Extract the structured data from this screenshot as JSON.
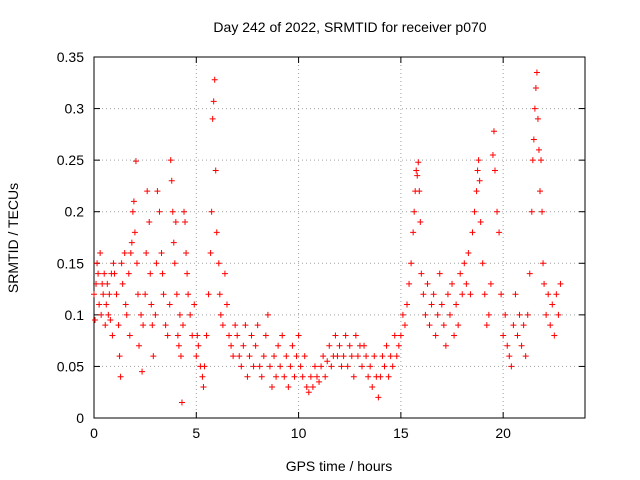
{
  "chart_data": {
    "type": "scatter",
    "title": "Day 242 of 2022, SRMTID for receiver p070",
    "xlabel": "GPS time / hours",
    "ylabel": "SRMTID / TECUs",
    "xlim": [
      0,
      24
    ],
    "ylim": [
      0,
      0.35
    ],
    "xticks": [
      0,
      5,
      10,
      15,
      20
    ],
    "xtick_labels": [
      "0",
      "5",
      "10",
      "15",
      "20"
    ],
    "yticks": [
      0,
      0.05,
      0.1,
      0.15,
      0.2,
      0.25,
      0.3,
      0.35
    ],
    "ytick_labels": [
      "0",
      "0.05",
      "0.1",
      "0.15",
      "0.2",
      "0.25",
      "0.3",
      "0.35"
    ],
    "grid": true,
    "marker": "+",
    "marker_color": "#ff0000",
    "series": [
      {
        "name": "SRMTID",
        "points": [
          [
            0.0,
            0.12
          ],
          [
            0.05,
            0.095
          ],
          [
            0.1,
            0.13
          ],
          [
            0.15,
            0.15
          ],
          [
            0.2,
            0.14
          ],
          [
            0.25,
            0.11
          ],
          [
            0.3,
            0.16
          ],
          [
            0.35,
            0.1
          ],
          [
            0.4,
            0.13
          ],
          [
            0.45,
            0.12
          ],
          [
            0.5,
            0.14
          ],
          [
            0.55,
            0.09
          ],
          [
            0.6,
            0.11
          ],
          [
            0.65,
            0.13
          ],
          [
            0.7,
            0.1
          ],
          [
            0.75,
            0.12
          ],
          [
            0.8,
            0.095
          ],
          [
            0.85,
            0.14
          ],
          [
            0.9,
            0.08
          ],
          [
            0.95,
            0.15
          ],
          [
            1.0,
            0.14
          ],
          [
            1.1,
            0.12
          ],
          [
            1.2,
            0.09
          ],
          [
            1.25,
            0.06
          ],
          [
            1.3,
            0.04
          ],
          [
            1.35,
            0.15
          ],
          [
            1.4,
            0.13
          ],
          [
            1.5,
            0.16
          ],
          [
            1.55,
            0.11
          ],
          [
            1.6,
            0.1
          ],
          [
            1.7,
            0.14
          ],
          [
            1.75,
            0.08
          ],
          [
            1.8,
            0.16
          ],
          [
            1.85,
            0.17
          ],
          [
            1.9,
            0.2
          ],
          [
            1.95,
            0.21
          ],
          [
            2.0,
            0.18
          ],
          [
            2.05,
            0.249
          ],
          [
            2.1,
            0.15
          ],
          [
            2.15,
            0.12
          ],
          [
            2.2,
            0.07
          ],
          [
            2.3,
            0.1
          ],
          [
            2.35,
            0.045
          ],
          [
            2.4,
            0.09
          ],
          [
            2.5,
            0.12
          ],
          [
            2.55,
            0.16
          ],
          [
            2.6,
            0.22
          ],
          [
            2.7,
            0.19
          ],
          [
            2.75,
            0.14
          ],
          [
            2.8,
            0.11
          ],
          [
            2.85,
            0.09
          ],
          [
            2.9,
            0.06
          ],
          [
            3.0,
            0.1
          ],
          [
            3.05,
            0.15
          ],
          [
            3.1,
            0.22
          ],
          [
            3.2,
            0.2
          ],
          [
            3.3,
            0.16
          ],
          [
            3.35,
            0.14
          ],
          [
            3.4,
            0.12
          ],
          [
            3.5,
            0.09
          ],
          [
            3.6,
            0.08
          ],
          [
            3.7,
            0.11
          ],
          [
            3.75,
            0.25
          ],
          [
            3.8,
            0.23
          ],
          [
            3.85,
            0.2
          ],
          [
            3.9,
            0.17
          ],
          [
            3.95,
            0.15
          ],
          [
            4.0,
            0.19
          ],
          [
            4.05,
            0.12
          ],
          [
            4.1,
            0.08
          ],
          [
            4.15,
            0.07
          ],
          [
            4.2,
            0.1
          ],
          [
            4.25,
            0.06
          ],
          [
            4.3,
            0.015
          ],
          [
            4.35,
            0.09
          ],
          [
            4.4,
            0.2
          ],
          [
            4.45,
            0.19
          ],
          [
            4.5,
            0.16
          ],
          [
            4.55,
            0.14
          ],
          [
            4.6,
            0.12
          ],
          [
            4.7,
            0.1
          ],
          [
            4.8,
            0.08
          ],
          [
            4.9,
            0.11
          ],
          [
            5.0,
            0.06
          ],
          [
            5.05,
            0.08
          ],
          [
            5.1,
            0.07
          ],
          [
            5.2,
            0.05
          ],
          [
            5.3,
            0.04
          ],
          [
            5.35,
            0.03
          ],
          [
            5.4,
            0.05
          ],
          [
            5.5,
            0.08
          ],
          [
            5.6,
            0.12
          ],
          [
            5.7,
            0.16
          ],
          [
            5.75,
            0.2
          ],
          [
            5.8,
            0.29
          ],
          [
            5.85,
            0.307
          ],
          [
            5.9,
            0.328
          ],
          [
            5.95,
            0.24
          ],
          [
            6.0,
            0.18
          ],
          [
            6.1,
            0.15
          ],
          [
            6.15,
            0.12
          ],
          [
            6.2,
            0.1
          ],
          [
            6.3,
            0.09
          ],
          [
            6.4,
            0.14
          ],
          [
            6.5,
            0.11
          ],
          [
            6.6,
            0.08
          ],
          [
            6.7,
            0.07
          ],
          [
            6.8,
            0.06
          ],
          [
            6.9,
            0.09
          ],
          [
            7.0,
            0.08
          ],
          [
            7.1,
            0.06
          ],
          [
            7.2,
            0.05
          ],
          [
            7.3,
            0.07
          ],
          [
            7.4,
            0.09
          ],
          [
            7.5,
            0.04
          ],
          [
            7.6,
            0.06
          ],
          [
            7.7,
            0.08
          ],
          [
            7.8,
            0.05
          ],
          [
            7.9,
            0.07
          ],
          [
            8.0,
            0.09
          ],
          [
            8.1,
            0.05
          ],
          [
            8.2,
            0.04
          ],
          [
            8.3,
            0.06
          ],
          [
            8.4,
            0.08
          ],
          [
            8.5,
            0.1
          ],
          [
            8.6,
            0.05
          ],
          [
            8.7,
            0.03
          ],
          [
            8.8,
            0.06
          ],
          [
            8.9,
            0.04
          ],
          [
            9.0,
            0.07
          ],
          [
            9.1,
            0.05
          ],
          [
            9.2,
            0.08
          ],
          [
            9.3,
            0.04
          ],
          [
            9.4,
            0.06
          ],
          [
            9.5,
            0.03
          ],
          [
            9.6,
            0.05
          ],
          [
            9.7,
            0.07
          ],
          [
            9.8,
            0.04
          ],
          [
            9.9,
            0.06
          ],
          [
            10.0,
            0.08
          ],
          [
            10.1,
            0.05
          ],
          [
            10.2,
            0.04
          ],
          [
            10.3,
            0.06
          ],
          [
            10.4,
            0.03
          ],
          [
            10.5,
            0.025
          ],
          [
            10.6,
            0.04
          ],
          [
            10.7,
            0.03
          ],
          [
            10.8,
            0.05
          ],
          [
            10.9,
            0.04
          ],
          [
            11.0,
            0.035
          ],
          [
            11.1,
            0.05
          ],
          [
            11.2,
            0.06
          ],
          [
            11.3,
            0.04
          ],
          [
            11.4,
            0.055
          ],
          [
            11.5,
            0.07
          ],
          [
            11.6,
            0.05
          ],
          [
            11.7,
            0.06
          ],
          [
            11.8,
            0.08
          ],
          [
            11.9,
            0.06
          ],
          [
            12.0,
            0.07
          ],
          [
            12.1,
            0.05
          ],
          [
            12.2,
            0.06
          ],
          [
            12.3,
            0.08
          ],
          [
            12.4,
            0.05
          ],
          [
            12.5,
            0.07
          ],
          [
            12.6,
            0.06
          ],
          [
            12.7,
            0.04
          ],
          [
            12.8,
            0.08
          ],
          [
            12.9,
            0.06
          ],
          [
            13.0,
            0.07
          ],
          [
            13.1,
            0.05
          ],
          [
            13.2,
            0.07
          ],
          [
            13.3,
            0.06
          ],
          [
            13.4,
            0.04
          ],
          [
            13.5,
            0.05
          ],
          [
            13.6,
            0.03
          ],
          [
            13.7,
            0.06
          ],
          [
            13.8,
            0.04
          ],
          [
            13.9,
            0.02
          ],
          [
            14.0,
            0.04
          ],
          [
            14.1,
            0.06
          ],
          [
            14.2,
            0.05
          ],
          [
            14.3,
            0.07
          ],
          [
            14.4,
            0.04
          ],
          [
            14.5,
            0.06
          ],
          [
            14.6,
            0.05
          ],
          [
            14.7,
            0.08
          ],
          [
            14.8,
            0.06
          ],
          [
            14.9,
            0.07
          ],
          [
            15.0,
            0.08
          ],
          [
            15.1,
            0.1
          ],
          [
            15.2,
            0.09
          ],
          [
            15.3,
            0.11
          ],
          [
            15.4,
            0.13
          ],
          [
            15.5,
            0.15
          ],
          [
            15.6,
            0.18
          ],
          [
            15.65,
            0.2
          ],
          [
            15.7,
            0.22
          ],
          [
            15.75,
            0.24
          ],
          [
            15.8,
            0.235
          ],
          [
            15.85,
            0.248
          ],
          [
            15.9,
            0.22
          ],
          [
            15.95,
            0.19
          ],
          [
            16.0,
            0.14
          ],
          [
            16.1,
            0.12
          ],
          [
            16.2,
            0.1
          ],
          [
            16.3,
            0.13
          ],
          [
            16.4,
            0.09
          ],
          [
            16.5,
            0.11
          ],
          [
            16.6,
            0.12
          ],
          [
            16.7,
            0.08
          ],
          [
            16.8,
            0.1
          ],
          [
            16.9,
            0.14
          ],
          [
            17.0,
            0.11
          ],
          [
            17.1,
            0.09
          ],
          [
            17.2,
            0.07
          ],
          [
            17.3,
            0.12
          ],
          [
            17.4,
            0.1
          ],
          [
            17.5,
            0.13
          ],
          [
            17.6,
            0.08
          ],
          [
            17.7,
            0.11
          ],
          [
            17.8,
            0.09
          ],
          [
            17.9,
            0.14
          ],
          [
            18.0,
            0.12
          ],
          [
            18.1,
            0.15
          ],
          [
            18.2,
            0.13
          ],
          [
            18.3,
            0.16
          ],
          [
            18.4,
            0.12
          ],
          [
            18.5,
            0.18
          ],
          [
            18.6,
            0.2
          ],
          [
            18.7,
            0.22
          ],
          [
            18.75,
            0.24
          ],
          [
            18.8,
            0.25
          ],
          [
            18.85,
            0.23
          ],
          [
            18.9,
            0.19
          ],
          [
            19.0,
            0.15
          ],
          [
            19.1,
            0.12
          ],
          [
            19.2,
            0.09
          ],
          [
            19.3,
            0.1
          ],
          [
            19.4,
            0.13
          ],
          [
            19.5,
            0.255
          ],
          [
            19.55,
            0.278
          ],
          [
            19.6,
            0.24
          ],
          [
            19.7,
            0.2
          ],
          [
            19.8,
            0.18
          ],
          [
            19.9,
            0.12
          ],
          [
            20.0,
            0.08
          ],
          [
            20.1,
            0.1
          ],
          [
            20.2,
            0.07
          ],
          [
            20.3,
            0.06
          ],
          [
            20.4,
            0.05
          ],
          [
            20.5,
            0.09
          ],
          [
            20.6,
            0.12
          ],
          [
            20.7,
            0.08
          ],
          [
            20.8,
            0.1
          ],
          [
            20.9,
            0.07
          ],
          [
            21.0,
            0.09
          ],
          [
            21.1,
            0.06
          ],
          [
            21.2,
            0.1
          ],
          [
            21.3,
            0.14
          ],
          [
            21.4,
            0.2
          ],
          [
            21.45,
            0.25
          ],
          [
            21.5,
            0.27
          ],
          [
            21.55,
            0.3
          ],
          [
            21.6,
            0.32
          ],
          [
            21.65,
            0.335
          ],
          [
            21.7,
            0.29
          ],
          [
            21.75,
            0.26
          ],
          [
            21.8,
            0.22
          ],
          [
            21.85,
            0.25
          ],
          [
            21.9,
            0.2
          ],
          [
            21.95,
            0.15
          ],
          [
            22.0,
            0.13
          ],
          [
            22.1,
            0.1
          ],
          [
            22.2,
            0.12
          ],
          [
            22.3,
            0.09
          ],
          [
            22.4,
            0.11
          ],
          [
            22.5,
            0.08
          ],
          [
            22.6,
            0.12
          ],
          [
            22.7,
            0.1
          ],
          [
            22.8,
            0.13
          ]
        ]
      }
    ]
  }
}
